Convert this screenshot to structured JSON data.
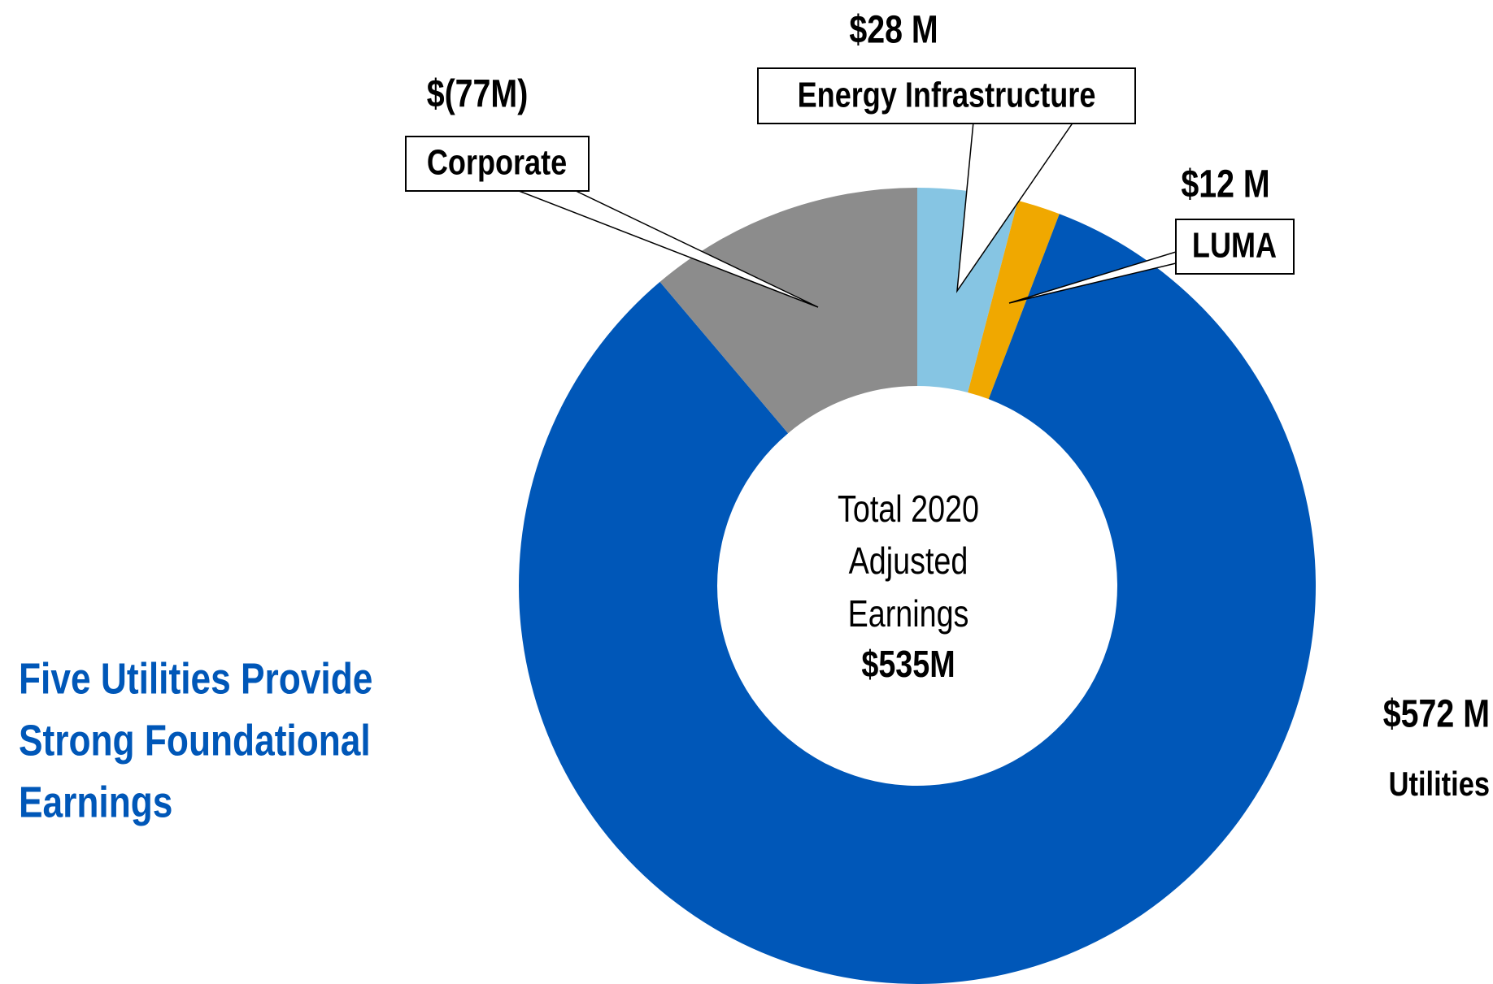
{
  "chart_data": {
    "type": "donut",
    "categories": [
      "Energy Infrastructure",
      "LUMA",
      "Utilities",
      "Corporate"
    ],
    "values": [
      28,
      12,
      572,
      -77
    ],
    "value_labels": [
      "$28 M",
      "$12 M",
      "$572 M",
      "$(77M)"
    ],
    "colors": [
      "#86c5e3",
      "#f0a800",
      "#0057b8",
      "#8c8c8c"
    ],
    "center_text": [
      "Total 2020",
      "Adjusted",
      "Earnings",
      "$535M"
    ],
    "side_text": [
      "Five Utilities Provide",
      "Strong Foundational",
      "Earnings"
    ]
  }
}
